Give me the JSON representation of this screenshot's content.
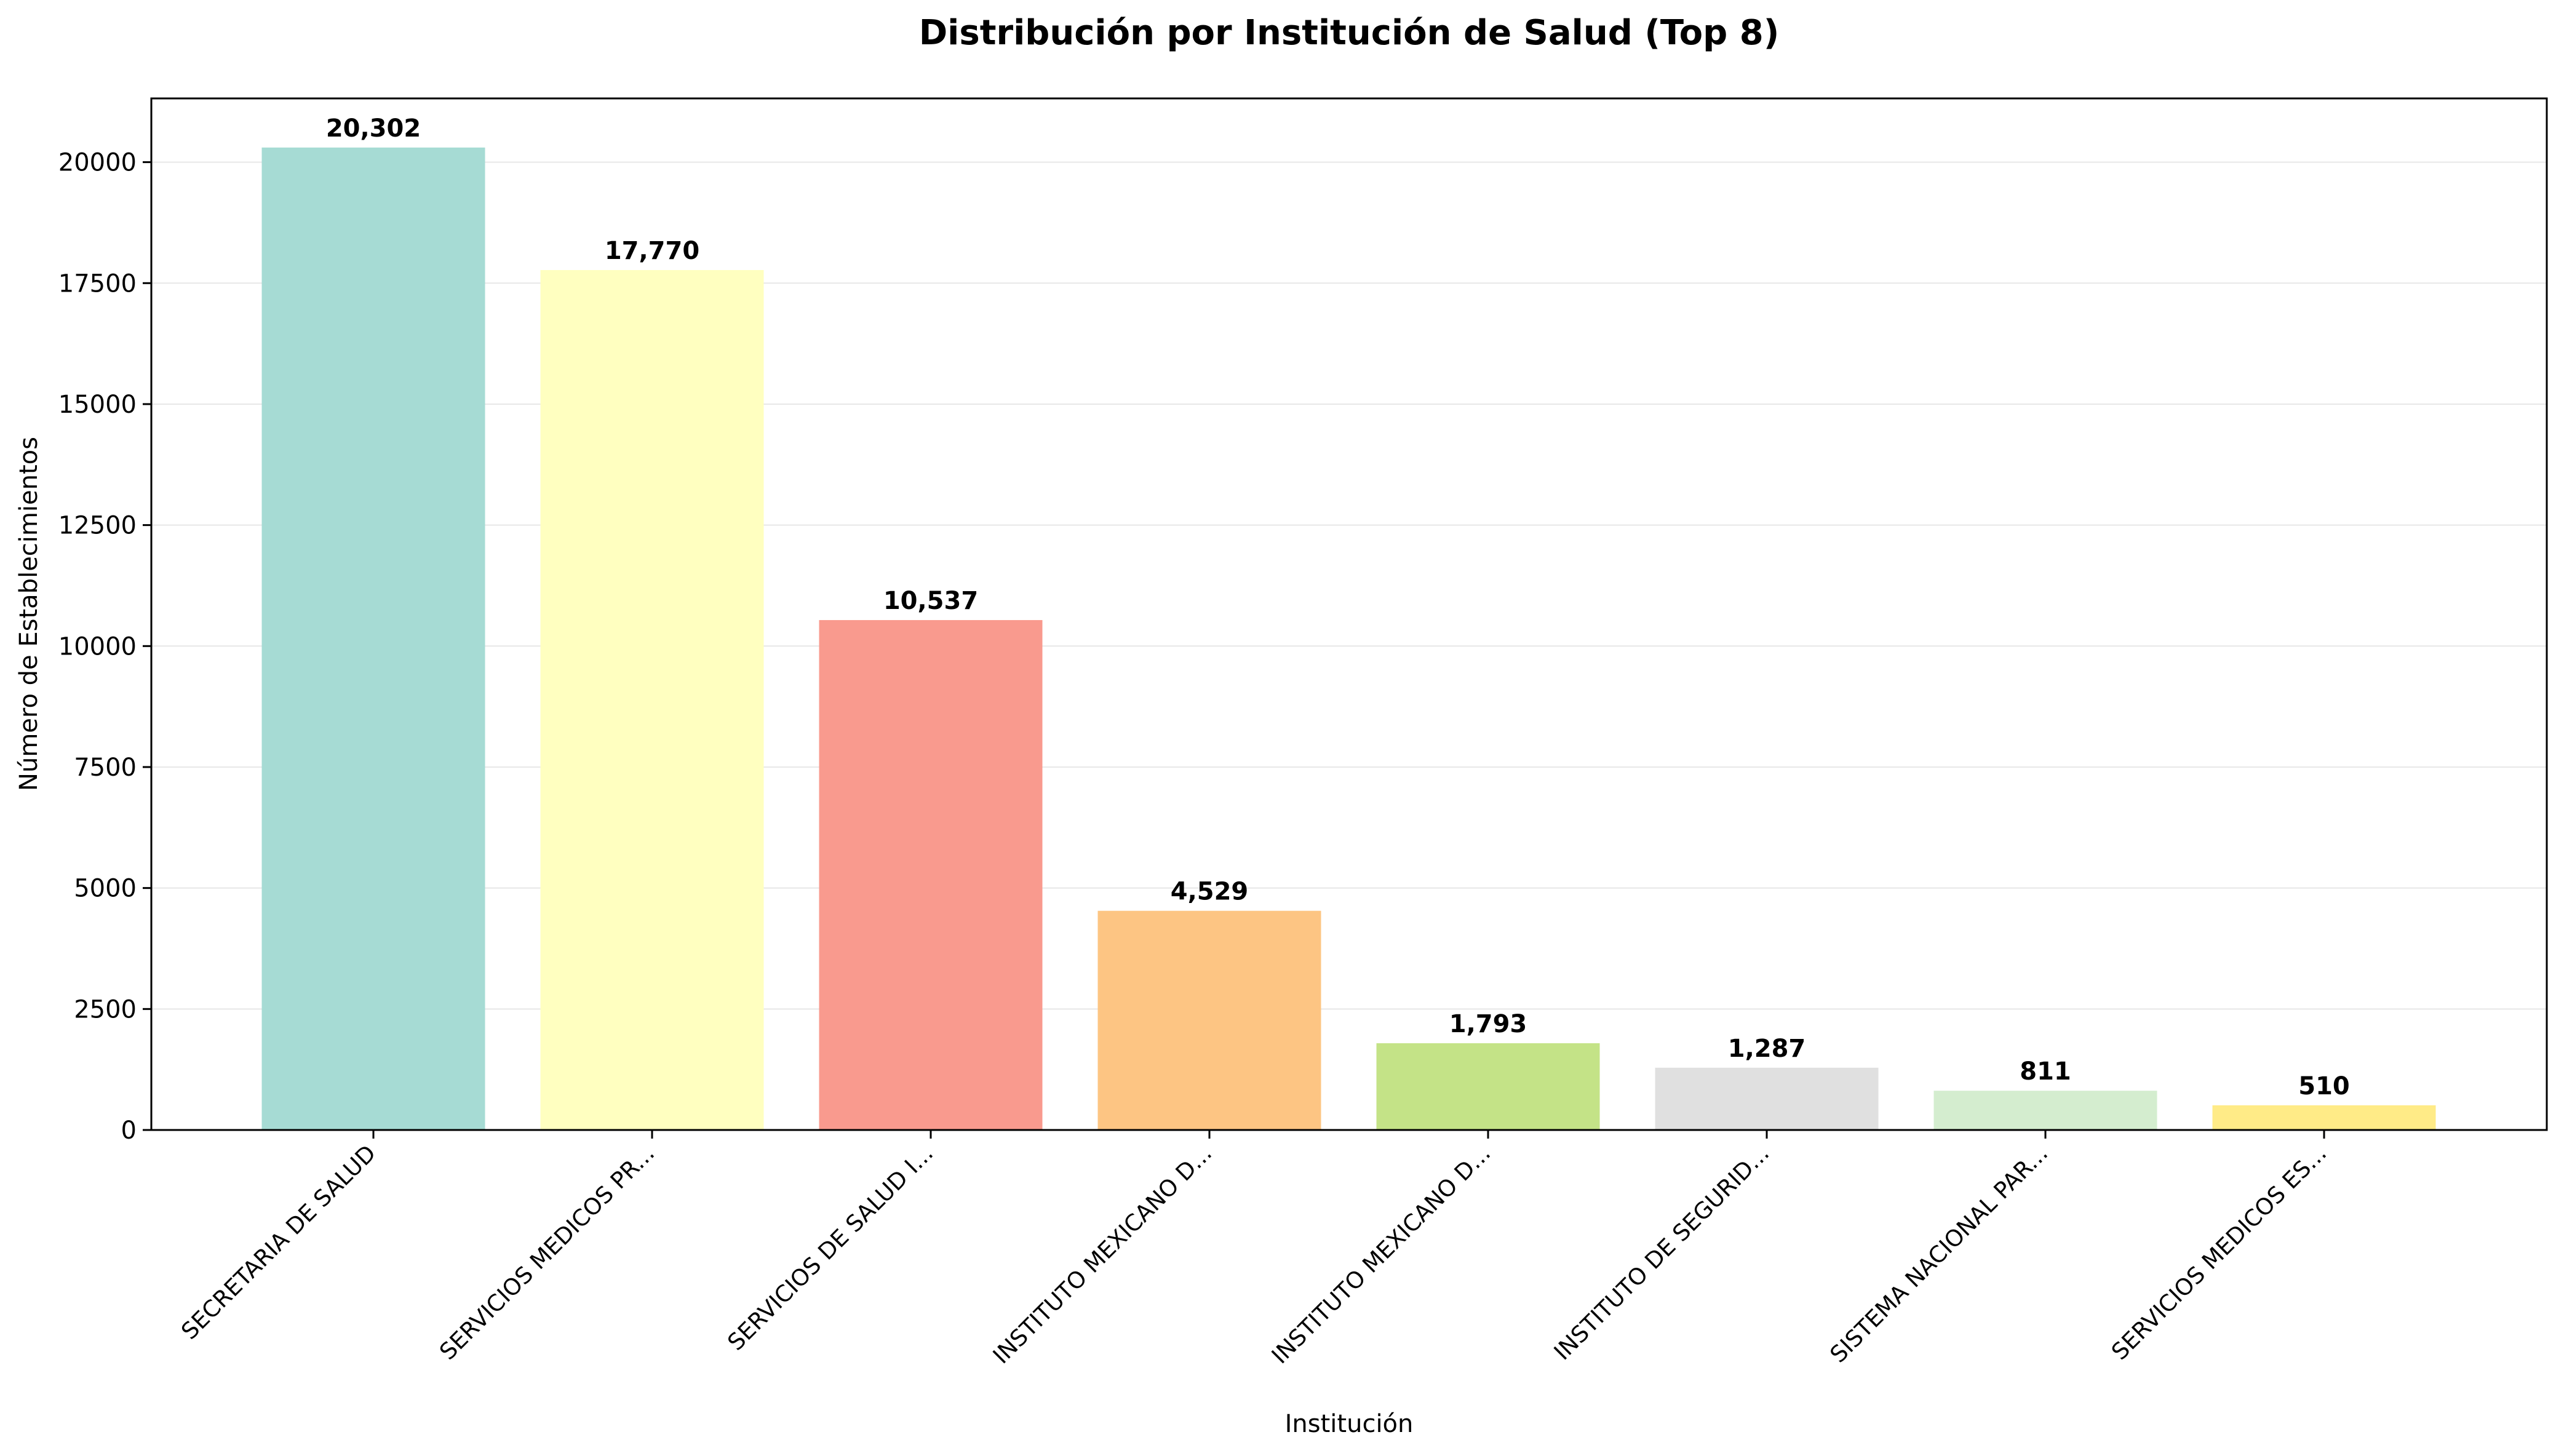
{
  "chart_data": {
    "type": "bar",
    "title": "Distribución por Institución de Salud (Top 8)",
    "xlabel": "Institución",
    "ylabel": "Número de Establecimientos",
    "categories": [
      "SECRETARIA DE SALUD",
      "SERVICIOS MEDICOS PR...",
      "SERVICIOS DE SALUD I...",
      "INSTITUTO MEXICANO D...",
      "INSTITUTO MEXICANO D...",
      "INSTITUTO DE SEGURID...",
      "SISTEMA NACIONAL PAR...",
      "SERVICIOS MEDICOS ES..."
    ],
    "values": [
      20302,
      17770,
      10537,
      4529,
      1793,
      1287,
      811,
      510
    ],
    "data_labels": [
      "20,302",
      "17,770",
      "10,537",
      "4,529",
      "1,793",
      "1,287",
      "811",
      "510"
    ],
    "colors": [
      "#a6dbd4",
      "#ffffc0",
      "#f99a8e",
      "#fdc583",
      "#c4e387",
      "#e0e0e0",
      "#d4edcf",
      "#ffeb87"
    ],
    "yticks": [
      0,
      2500,
      5000,
      7500,
      10000,
      12500,
      15000,
      17500,
      20000
    ],
    "ytick_labels": [
      "0",
      "2500",
      "5000",
      "7500",
      "10000",
      "12500",
      "15000",
      "17500",
      "20000"
    ],
    "ylim": [
      0,
      21317
    ],
    "grid": "horizontal",
    "legend": "none"
  }
}
